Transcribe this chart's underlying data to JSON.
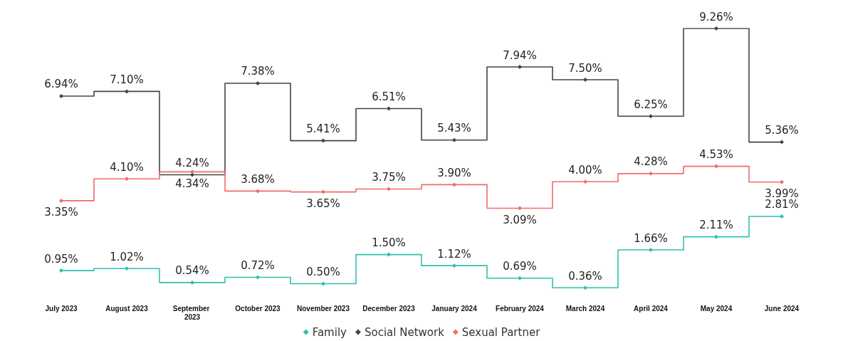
{
  "chart_data": {
    "type": "step",
    "categories": [
      "July 2023",
      "August 2023",
      "September 2023",
      "October 2023",
      "November 2023",
      "December 2023",
      "January 2024",
      "February 2024",
      "March 2024",
      "April 2024",
      "May 2024",
      "June 2024"
    ],
    "series": [
      {
        "name": "Family",
        "color": "#2cc2ad",
        "values": [
          0.95,
          1.02,
          0.54,
          0.72,
          0.5,
          1.5,
          1.12,
          0.69,
          0.36,
          1.66,
          2.11,
          2.81
        ],
        "value_labels": [
          "0.95%",
          "1.02%",
          "0.54%",
          "0.72%",
          "0.50%",
          "1.50%",
          "1.12%",
          "0.69%",
          "0.36%",
          "1.66%",
          "2.11%",
          "2.81%"
        ]
      },
      {
        "name": "Social Network",
        "color": "#3e4747",
        "values": [
          6.94,
          7.1,
          4.24,
          7.38,
          5.41,
          6.51,
          5.43,
          7.94,
          7.5,
          6.25,
          9.26,
          5.36
        ],
        "value_labels": [
          "6.94%",
          "7.10%",
          "4.24%",
          "7.38%",
          "5.41%",
          "6.51%",
          "5.43%",
          "7.94%",
          "7.50%",
          "6.25%",
          "9.26%",
          "5.36%"
        ]
      },
      {
        "name": "Sexual Partner",
        "color": "#f26a6a",
        "values": [
          3.35,
          4.1,
          4.34,
          3.68,
          3.65,
          3.75,
          3.9,
          3.09,
          4.0,
          4.28,
          4.53,
          3.99
        ],
        "value_labels": [
          "3.35%",
          "4.10%",
          "4.34%",
          "3.68%",
          "3.65%",
          "3.75%",
          "3.90%",
          "3.09%",
          "4.00%",
          "4.28%",
          "4.53%",
          "3.99%"
        ]
      }
    ],
    "legend": "bottom",
    "marker": "diamond",
    "grid": false,
    "tick_labels": "x"
  }
}
